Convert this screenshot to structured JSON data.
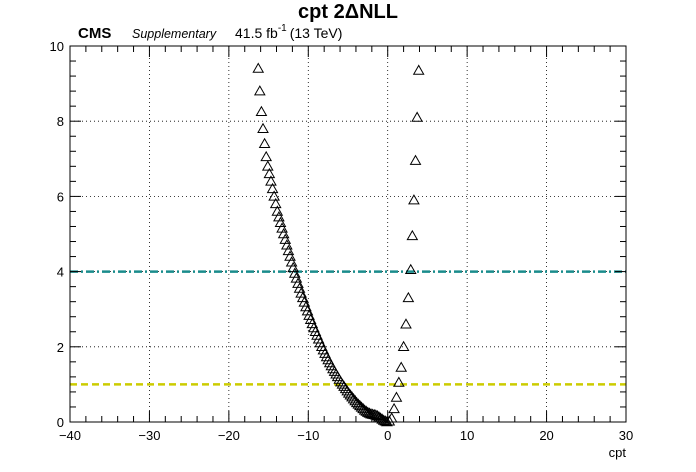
{
  "chart_data": {
    "type": "scatter",
    "title": "cpt 2ΔNLL",
    "xlabel": "cpt",
    "ylabel": "",
    "xlim": [
      -40,
      30
    ],
    "ylim": [
      0,
      10
    ],
    "xticks": [
      -40,
      -30,
      -20,
      -10,
      0,
      10,
      20,
      30
    ],
    "yticks": [
      0,
      2,
      4,
      6,
      8,
      10
    ],
    "grid": true,
    "marker": "open-triangle",
    "reference_lines": [
      {
        "y": 1,
        "color": "#cccc00",
        "style": "dashed"
      },
      {
        "y": 4,
        "color": "#1a8c8c",
        "style": "dash-dot"
      }
    ],
    "series": [
      {
        "values": [
          {
            "x": -16.3,
            "y": 9.4
          },
          {
            "x": -16.1,
            "y": 8.8
          },
          {
            "x": -15.9,
            "y": 8.25
          },
          {
            "x": -15.7,
            "y": 7.8
          },
          {
            "x": -15.5,
            "y": 7.4
          },
          {
            "x": -15.3,
            "y": 7.05
          },
          {
            "x": -15.1,
            "y": 6.8
          },
          {
            "x": -14.9,
            "y": 6.6
          },
          {
            "x": -14.7,
            "y": 6.4
          },
          {
            "x": -14.5,
            "y": 6.2
          },
          {
            "x": -14.3,
            "y": 6.0
          },
          {
            "x": -14.1,
            "y": 5.8
          },
          {
            "x": -13.9,
            "y": 5.6
          },
          {
            "x": -13.7,
            "y": 5.45
          },
          {
            "x": -13.5,
            "y": 5.3
          },
          {
            "x": -13.3,
            "y": 5.15
          },
          {
            "x": -13.1,
            "y": 5.0
          },
          {
            "x": -12.9,
            "y": 4.85
          },
          {
            "x": -12.7,
            "y": 4.7
          },
          {
            "x": -12.5,
            "y": 4.55
          },
          {
            "x": -12.3,
            "y": 4.4
          },
          {
            "x": -12.1,
            "y": 4.25
          },
          {
            "x": -11.9,
            "y": 4.1
          },
          {
            "x": -11.7,
            "y": 3.95
          },
          {
            "x": -11.5,
            "y": 3.82
          },
          {
            "x": -11.3,
            "y": 3.68
          },
          {
            "x": -11.1,
            "y": 3.55
          },
          {
            "x": -10.9,
            "y": 3.42
          },
          {
            "x": -10.7,
            "y": 3.3
          },
          {
            "x": -10.5,
            "y": 3.18
          },
          {
            "x": -10.3,
            "y": 3.06
          },
          {
            "x": -10.1,
            "y": 2.95
          },
          {
            "x": -9.9,
            "y": 2.83
          },
          {
            "x": -9.7,
            "y": 2.72
          },
          {
            "x": -9.5,
            "y": 2.61
          },
          {
            "x": -9.3,
            "y": 2.5
          },
          {
            "x": -9.1,
            "y": 2.4
          },
          {
            "x": -8.9,
            "y": 2.3
          },
          {
            "x": -8.7,
            "y": 2.2
          },
          {
            "x": -8.5,
            "y": 2.1
          },
          {
            "x": -8.3,
            "y": 2.0
          },
          {
            "x": -8.1,
            "y": 1.91
          },
          {
            "x": -7.9,
            "y": 1.82
          },
          {
            "x": -7.7,
            "y": 1.73
          },
          {
            "x": -7.5,
            "y": 1.65
          },
          {
            "x": -7.3,
            "y": 1.57
          },
          {
            "x": -7.1,
            "y": 1.49
          },
          {
            "x": -6.9,
            "y": 1.41
          },
          {
            "x": -6.7,
            "y": 1.34
          },
          {
            "x": -6.5,
            "y": 1.27
          },
          {
            "x": -6.3,
            "y": 1.2
          },
          {
            "x": -6.1,
            "y": 1.13
          },
          {
            "x": -5.9,
            "y": 1.06
          },
          {
            "x": -5.7,
            "y": 1.0
          },
          {
            "x": -5.5,
            "y": 0.94
          },
          {
            "x": -5.3,
            "y": 0.88
          },
          {
            "x": -5.1,
            "y": 0.82
          },
          {
            "x": -4.9,
            "y": 0.76
          },
          {
            "x": -4.7,
            "y": 0.71
          },
          {
            "x": -4.5,
            "y": 0.66
          },
          {
            "x": -4.3,
            "y": 0.61
          },
          {
            "x": -4.1,
            "y": 0.56
          },
          {
            "x": -3.9,
            "y": 0.51
          },
          {
            "x": -3.7,
            "y": 0.47
          },
          {
            "x": -3.5,
            "y": 0.43
          },
          {
            "x": -3.3,
            "y": 0.39
          },
          {
            "x": -3.1,
            "y": 0.35
          },
          {
            "x": -2.9,
            "y": 0.31
          },
          {
            "x": -2.7,
            "y": 0.28
          },
          {
            "x": -2.5,
            "y": 0.25
          },
          {
            "x": -2.3,
            "y": 0.23
          },
          {
            "x": -2.1,
            "y": 0.21
          },
          {
            "x": -1.9,
            "y": 0.2
          },
          {
            "x": -1.7,
            "y": 0.19
          },
          {
            "x": -1.5,
            "y": 0.18
          },
          {
            "x": -1.3,
            "y": 0.16
          },
          {
            "x": -1.1,
            "y": 0.13
          },
          {
            "x": -0.9,
            "y": 0.1
          },
          {
            "x": -0.7,
            "y": 0.07
          },
          {
            "x": -0.5,
            "y": 0.04
          },
          {
            "x": -0.3,
            "y": 0.02
          },
          {
            "x": -0.1,
            "y": 0.0
          },
          {
            "x": 0.2,
            "y": 0.02
          },
          {
            "x": 0.5,
            "y": 0.1
          },
          {
            "x": 0.8,
            "y": 0.35
          },
          {
            "x": 1.1,
            "y": 0.65
          },
          {
            "x": 1.4,
            "y": 1.05
          },
          {
            "x": 1.7,
            "y": 1.45
          },
          {
            "x": 2.0,
            "y": 2.0
          },
          {
            "x": 2.3,
            "y": 2.6
          },
          {
            "x": 2.6,
            "y": 3.3
          },
          {
            "x": 2.9,
            "y": 4.05
          },
          {
            "x": 3.1,
            "y": 4.95
          },
          {
            "x": 3.3,
            "y": 5.9
          },
          {
            "x": 3.5,
            "y": 6.95
          },
          {
            "x": 3.7,
            "y": 8.1
          },
          {
            "x": 3.9,
            "y": 9.35
          }
        ]
      }
    ]
  },
  "header": {
    "experiment": "CMS",
    "tag": "Supplementary",
    "lumi_prefix": "41.5 fb",
    "lumi_exponent": "-1",
    "lumi_suffix": "(13 TeV)"
  },
  "colors": {
    "ref_line_1": "#cccc00",
    "ref_line_4": "#1a8c8c",
    "marker": "#000000",
    "grid": "#000000"
  }
}
